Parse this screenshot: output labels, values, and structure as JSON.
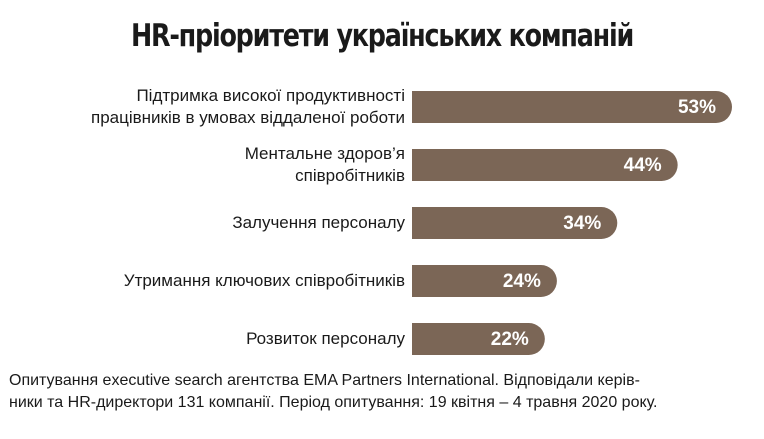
{
  "chart_data": {
    "type": "bar",
    "orientation": "horizontal",
    "title": "HR-пріоритети українських компаній",
    "categories": [
      "Підтримка високої продуктивності\nпрацівників в умовах віддаленої роботи",
      "Ментальне здоров’я\nспівробітників",
      "Залучення персоналу",
      "Утримання ключових співробітників",
      "Розвиток персоналу"
    ],
    "values": [
      53,
      44,
      34,
      24,
      22
    ],
    "value_labels": [
      "53%",
      "44%",
      "34%",
      "24%",
      "22%"
    ],
    "color": "#7b6656",
    "footnote": "Опитування executive search агентства EMA Partners International. Відповідали керів-\nники та HR-директори 131 компанії. Період опитування: 19 квітня – 4 травня 2020 року."
  }
}
